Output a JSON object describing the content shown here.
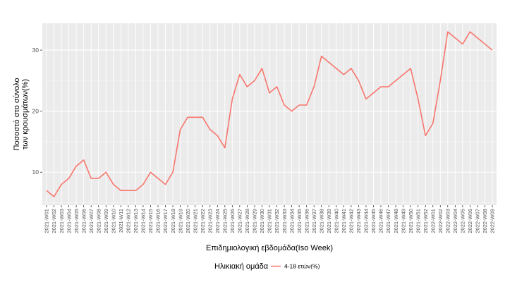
{
  "chart_data": {
    "type": "line",
    "xlabel": "Επιδημιολογική εβδομάδα(Iso Week)",
    "ylabel_lines": [
      "Ποσοστό στο σύνολο",
      "των κρουσμάτων(%)"
    ],
    "yticks": [
      10,
      20,
      30
    ],
    "ylim": [
      4.6,
      34.4
    ],
    "grid": true,
    "legend": {
      "title": "Ηλικιακή ομάδα",
      "position": "bottom"
    },
    "categories": [
      "2021-W01",
      "2021-W02",
      "2021-W03",
      "2021-W04",
      "2021-W05",
      "2021-W06",
      "2021-W07",
      "2021-W08",
      "2021-W09",
      "2021-W10",
      "2021-W11",
      "2021-W12",
      "2021-W13",
      "2021-W14",
      "2021-W15",
      "2021-W16",
      "2021-W17",
      "2021-W18",
      "2021-W19",
      "2021-W20",
      "2021-W21",
      "2021-W22",
      "2021-W23",
      "2021-W24",
      "2021-W25",
      "2021-W26",
      "2021-W27",
      "2021-W28",
      "2021-W29",
      "2021-W30",
      "2021-W31",
      "2021-W32",
      "2021-W33",
      "2021-W34",
      "2021-W35",
      "2021-W36",
      "2021-W37",
      "2021-W38",
      "2021-W39",
      "2021-W40",
      "2021-W41",
      "2021-W42",
      "2021-W43",
      "2021-W44",
      "2021-W45",
      "2021-W46",
      "2021-W47",
      "2021-W48",
      "2021-W49",
      "2021-W50",
      "2021-W51",
      "2021-W52",
      "2022-W01",
      "2022-W02",
      "2022-W03",
      "2022-W04",
      "2022-W05",
      "2022-W06",
      "2022-W07",
      "2022-W08",
      "2022-W09"
    ],
    "series": [
      {
        "name": "4-18 ετών(%)",
        "color": "#F8766D",
        "values": [
          7,
          6,
          8,
          9,
          11,
          12,
          9,
          9,
          10,
          8,
          7,
          7,
          7,
          8,
          10,
          9,
          8,
          10,
          17,
          19,
          19,
          19,
          17,
          16,
          14,
          22,
          26,
          24,
          25,
          27,
          23,
          24,
          21,
          20,
          21,
          21,
          24,
          29,
          28,
          27,
          26,
          27,
          25,
          22,
          23,
          24,
          24,
          25,
          26,
          27,
          22,
          16,
          18,
          25,
          33,
          32,
          31,
          33,
          32,
          31,
          30
        ]
      }
    ]
  }
}
